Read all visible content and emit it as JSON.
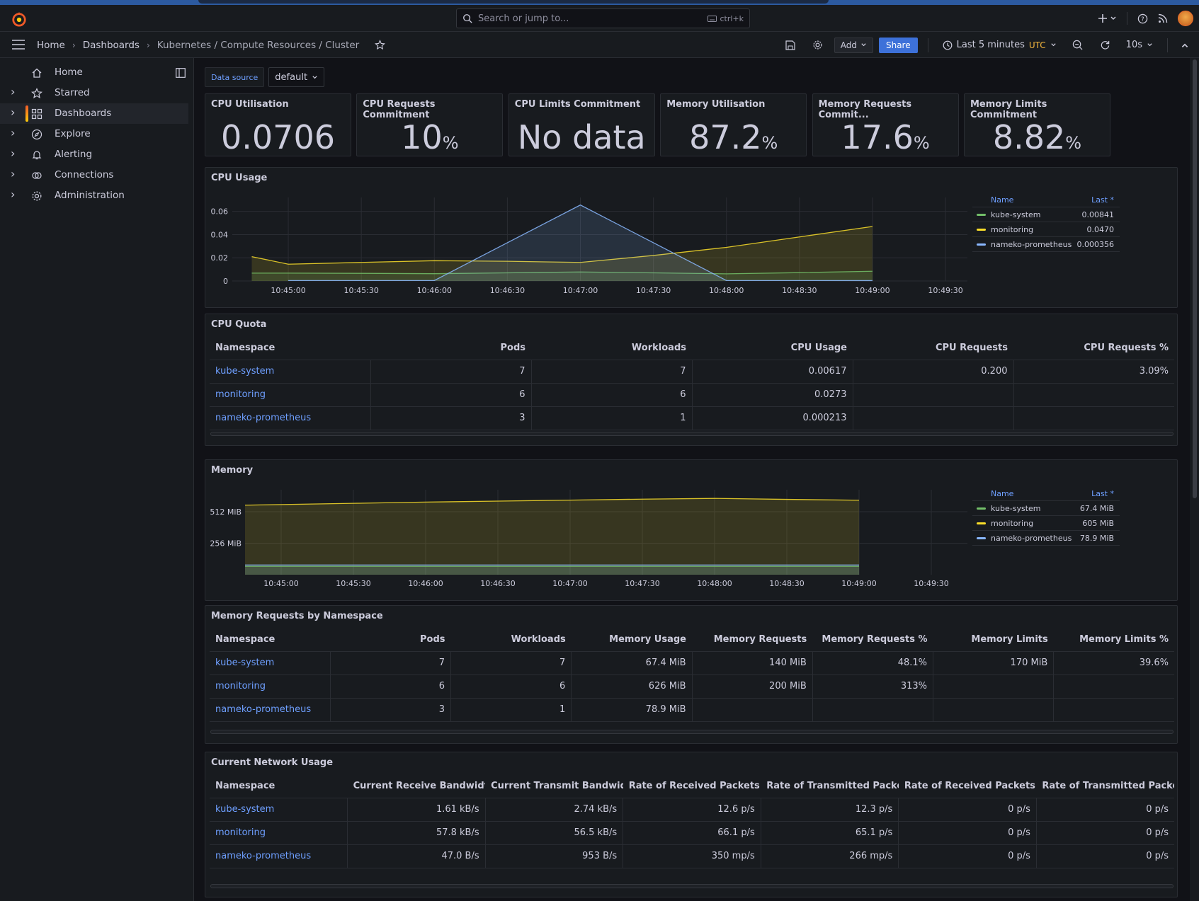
{
  "topbar": {
    "search_placeholder": "Search or jump to...",
    "search_shortcut": "ctrl+k",
    "new_icon": "plus-icon",
    "help_icon": "help-icon",
    "news_icon": "rss-icon"
  },
  "breadcrumb": {
    "home": "Home",
    "dashboards": "Dashboards",
    "current": "Kubernetes / Compute Resources / Cluster"
  },
  "toolbar": {
    "add_label": "Add",
    "share_label": "Share",
    "time_range": "Last 5 minutes",
    "timezone": "UTC",
    "refresh_interval": "10s"
  },
  "sidebar": {
    "items": [
      {
        "label": "Home",
        "icon": "home-icon",
        "expandable": false,
        "active": false
      },
      {
        "label": "Starred",
        "icon": "star-icon",
        "expandable": true,
        "active": false
      },
      {
        "label": "Dashboards",
        "icon": "grid-icon",
        "expandable": true,
        "active": true
      },
      {
        "label": "Explore",
        "icon": "compass-icon",
        "expandable": true,
        "active": false
      },
      {
        "label": "Alerting",
        "icon": "bell-icon",
        "expandable": true,
        "active": false
      },
      {
        "label": "Connections",
        "icon": "connections-icon",
        "expandable": true,
        "active": false
      },
      {
        "label": "Administration",
        "icon": "gear-icon",
        "expandable": true,
        "active": false
      }
    ]
  },
  "variables": {
    "datasource_label": "Data source",
    "datasource_value": "default"
  },
  "stats": [
    {
      "title": "CPU Utilisation",
      "value": "0.0706",
      "unit": ""
    },
    {
      "title": "CPU Requests Commitment",
      "value": "10",
      "unit": "%"
    },
    {
      "title": "CPU Limits Commitment",
      "value": "No data",
      "unit": ""
    },
    {
      "title": "Memory Utilisation",
      "value": "87.2",
      "unit": "%"
    },
    {
      "title": "Memory Requests Commit...",
      "value": "17.6",
      "unit": "%"
    },
    {
      "title": "Memory Limits Commitment",
      "value": "8.82",
      "unit": "%"
    }
  ],
  "colors": {
    "kube_system": "#73bf69",
    "monitoring": "#fade2a",
    "nameko_prometheus": "#8ab8ff",
    "link": "#6e9fff",
    "accent": "#f05a28"
  },
  "cpu_usage": {
    "title": "CPU Usage",
    "legend_name": "Name",
    "legend_last": "Last *",
    "legend": [
      {
        "name": "kube-system",
        "last": "0.00841"
      },
      {
        "name": "monitoring",
        "last": "0.0470"
      },
      {
        "name": "nameko-prometheus",
        "last": "0.000356"
      }
    ]
  },
  "memory": {
    "title": "Memory",
    "legend_name": "Name",
    "legend_last": "Last *",
    "legend": [
      {
        "name": "kube-system",
        "last": "67.4 MiB"
      },
      {
        "name": "monitoring",
        "last": "605 MiB"
      },
      {
        "name": "nameko-prometheus",
        "last": "78.9 MiB"
      }
    ]
  },
  "chart_data": [
    {
      "type": "area",
      "title": "CPU Usage",
      "x": [
        "10:44:45",
        "10:45:00",
        "10:45:30",
        "10:46:00",
        "10:46:30",
        "10:47:00",
        "10:47:30",
        "10:48:00",
        "10:48:30",
        "10:49:00"
      ],
      "x_ticks": [
        "10:45:00",
        "10:45:30",
        "10:46:00",
        "10:46:30",
        "10:47:00",
        "10:47:30",
        "10:48:00",
        "10:48:30",
        "10:49:00",
        "10:49:30"
      ],
      "y_ticks": [
        "0",
        "0.02",
        "0.04",
        "0.06"
      ],
      "ylim": [
        0,
        0.072
      ],
      "series": [
        {
          "name": "monitoring",
          "color": "#fade2a",
          "values": [
            0.021,
            0.0145,
            0.016,
            0.0175,
            0.017,
            0.016,
            0.022,
            0.029,
            0.038,
            0.047
          ]
        },
        {
          "name": "kube-system",
          "color": "#73bf69",
          "values": [
            0.0068,
            0.0068,
            0.0066,
            0.0063,
            0.007,
            0.0078,
            0.007,
            0.0062,
            0.0072,
            0.0084
          ]
        },
        {
          "name": "nameko-prometheus",
          "color": "#8ab8ff",
          "values": [
            null,
            0.0004,
            0.0004,
            0.0004,
            0.033,
            0.0655,
            0.033,
            0.0004,
            0.0004,
            0.000356
          ]
        }
      ],
      "grid": true,
      "legend": "right"
    },
    {
      "type": "area",
      "title": "Memory",
      "x": [
        "10:44:45",
        "10:45:00",
        "10:45:30",
        "10:46:00",
        "10:46:30",
        "10:47:00",
        "10:47:30",
        "10:48:00",
        "10:48:30",
        "10:49:00"
      ],
      "x_ticks": [
        "10:45:00",
        "10:45:30",
        "10:46:00",
        "10:46:30",
        "10:47:00",
        "10:47:30",
        "10:48:00",
        "10:48:30",
        "10:49:00",
        "10:49:30"
      ],
      "y_ticks": [
        "256 MiB",
        "512 MiB"
      ],
      "ylim_mib": [
        0,
        690
      ],
      "series": [
        {
          "name": "monitoring",
          "color": "#fade2a",
          "values_mib": [
            565,
            570,
            580,
            590,
            598,
            606,
            614,
            620,
            612,
            605
          ]
        },
        {
          "name": "nameko-prometheus",
          "color": "#8ab8ff",
          "values_mib": [
            78.9,
            78.9,
            78.9,
            78.9,
            78.9,
            78.9,
            78.9,
            78.9,
            78.9,
            78.9
          ]
        },
        {
          "name": "kube-system",
          "color": "#73bf69",
          "values_mib": [
            67.4,
            67.4,
            67.4,
            67.4,
            67.4,
            67.4,
            67.4,
            67.4,
            67.4,
            67.4
          ]
        }
      ],
      "grid": true,
      "legend": "right"
    }
  ],
  "cpu_quota": {
    "title": "CPU Quota",
    "columns": [
      "Namespace",
      "Pods",
      "Workloads",
      "CPU Usage",
      "CPU Requests",
      "CPU Requests %"
    ],
    "rows": [
      [
        "kube-system",
        "7",
        "7",
        "0.00617",
        "0.200",
        "3.09%"
      ],
      [
        "monitoring",
        "6",
        "6",
        "0.0273",
        "",
        ""
      ],
      [
        "nameko-prometheus",
        "3",
        "1",
        "0.000213",
        "",
        ""
      ]
    ]
  },
  "mem_requests": {
    "title": "Memory Requests by Namespace",
    "columns": [
      "Namespace",
      "Pods",
      "Workloads",
      "Memory Usage",
      "Memory Requests",
      "Memory Requests %",
      "Memory Limits",
      "Memory Limits %"
    ],
    "rows": [
      [
        "kube-system",
        "7",
        "7",
        "67.4 MiB",
        "140 MiB",
        "48.1%",
        "170 MiB",
        "39.6%"
      ],
      [
        "monitoring",
        "6",
        "6",
        "626 MiB",
        "200 MiB",
        "313%",
        "",
        ""
      ],
      [
        "nameko-prometheus",
        "3",
        "1",
        "78.9 MiB",
        "",
        "",
        "",
        ""
      ]
    ]
  },
  "network": {
    "title": "Current Network Usage",
    "columns": [
      "Namespace",
      "Current Receive Bandwidth",
      "Current Transmit Bandwidth",
      "Rate of Received Packets",
      "Rate of Transmitted Packets",
      "Rate of Received Packets Drc",
      "Rate of Transmitted Packets I"
    ],
    "rows": [
      [
        "kube-system",
        "1.61 kB/s",
        "2.74 kB/s",
        "12.6 p/s",
        "12.3 p/s",
        "0 p/s",
        "0 p/s"
      ],
      [
        "monitoring",
        "57.8 kB/s",
        "56.5 kB/s",
        "66.1 p/s",
        "65.1 p/s",
        "0 p/s",
        "0 p/s"
      ],
      [
        "nameko-prometheus",
        "47.0 B/s",
        "953 B/s",
        "350 mp/s",
        "266 mp/s",
        "0 p/s",
        "0 p/s"
      ]
    ]
  }
}
